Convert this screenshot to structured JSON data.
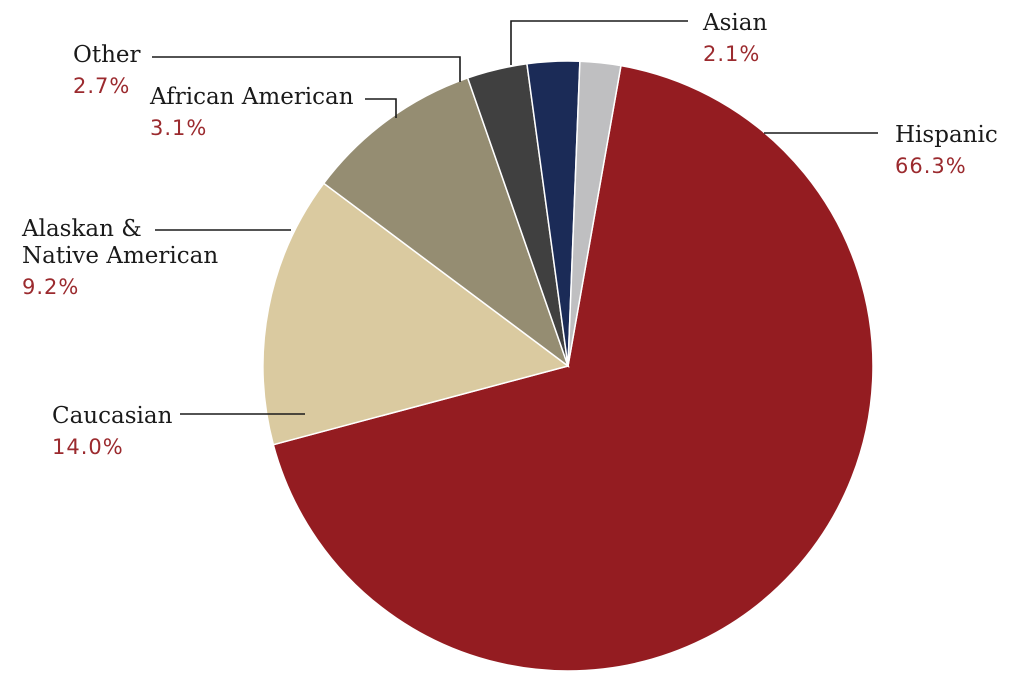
{
  "chart_data": {
    "type": "pie",
    "title": "",
    "value_suffix": "%",
    "value_color": "#9b2a2e",
    "slices": [
      {
        "label": "Hispanic",
        "value": 66.3,
        "color": "#941c21"
      },
      {
        "label": "Caucasian",
        "value": 14.0,
        "color": "#dacaa0"
      },
      {
        "label": "Alaskan & Native American",
        "label_lines": [
          "Alaskan &",
          "Native American"
        ],
        "value": 9.2,
        "color": "#958d72"
      },
      {
        "label": "African American",
        "value": 3.1,
        "color": "#404040"
      },
      {
        "label": "Other",
        "value": 2.7,
        "color": "#1b2b57"
      },
      {
        "label": "Asian",
        "value": 2.1,
        "color": "#bfbfc1"
      }
    ],
    "value_labels": [
      "66.3%",
      "14.0%",
      "9.2%",
      "3.1%",
      "2.7%",
      "2.1%"
    ]
  }
}
